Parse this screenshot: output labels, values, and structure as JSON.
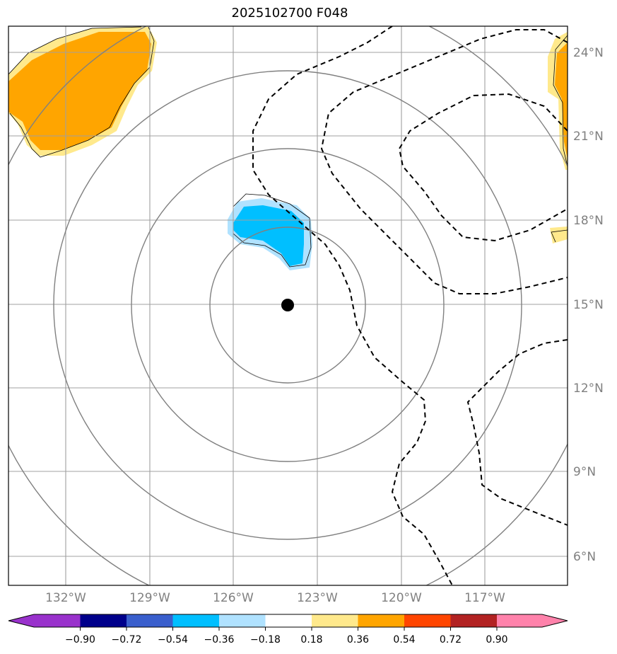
{
  "title": "2025102700 F048",
  "map": {
    "lat_labels": [
      "24°N",
      "21°N",
      "18°N",
      "15°N",
      "12°N",
      "9°N",
      "6°N"
    ],
    "lon_labels": [
      "132°W",
      "129°W",
      "126°W",
      "123°W",
      "120°W",
      "117°W"
    ],
    "center_marker": {
      "lon": -124.0,
      "lat": 15.0,
      "color": "#000000"
    },
    "gridline_color": "#a0a0a0",
    "range_ring_color": "#808080",
    "contour_style": "dashed black"
  },
  "colorbar": {
    "ticks": [
      "−0.90",
      "−0.72",
      "−0.54",
      "−0.36",
      "−0.18",
      "0.18",
      "0.36",
      "0.54",
      "0.72",
      "0.90"
    ],
    "colors": [
      "#9932cc",
      "#00008b",
      "#3a5fcd",
      "#00bfff",
      "#b0e2ff",
      "#ffffff",
      "#ffe98c",
      "#ffa500",
      "#ff4500",
      "#b22222",
      "#ff82ab"
    ]
  }
}
